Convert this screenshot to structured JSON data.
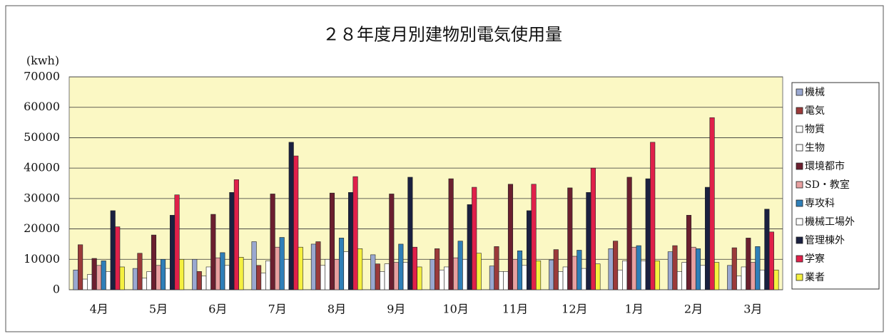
{
  "chart_data": {
    "type": "bar",
    "title": "２８年度月別建物別電気使用量",
    "y_label": "(kwh)",
    "categories": [
      "4月",
      "5月",
      "6月",
      "7月",
      "8月",
      "9月",
      "10月",
      "11月",
      "12月",
      "1月",
      "2月",
      "3月"
    ],
    "series": [
      {
        "name": "機械",
        "color": "#9aa8d0",
        "values": [
          6500,
          7000,
          10000,
          15800,
          15000,
          11500,
          10000,
          7800,
          9800,
          13500,
          12500,
          8000
        ]
      },
      {
        "name": "電気",
        "color": "#9b3a3a",
        "values": [
          14800,
          12000,
          6000,
          8000,
          15800,
          8500,
          13500,
          14200,
          13200,
          16000,
          14500,
          13800
        ]
      },
      {
        "name": "物質",
        "color": "#ffffff",
        "values": [
          3500,
          3800,
          4500,
          5500,
          8000,
          6000,
          6500,
          6000,
          6000,
          6500,
          6000,
          4500
        ]
      },
      {
        "name": "生物",
        "color": "#ffffff",
        "values": [
          5000,
          6000,
          7500,
          9500,
          10000,
          8500,
          7500,
          6000,
          7500,
          9500,
          9000,
          7500
        ]
      },
      {
        "name": "環境都市",
        "color": "#6b1f2f",
        "values": [
          10300,
          18000,
          24800,
          31500,
          31800,
          31500,
          36500,
          34700,
          33500,
          37000,
          24500,
          17000
        ]
      },
      {
        "name": "SD・教室",
        "color": "#e8a0a0",
        "values": [
          8000,
          8000,
          10500,
          14000,
          10000,
          9000,
          10500,
          10000,
          11000,
          14000,
          14000,
          9000
        ]
      },
      {
        "name": "専攻科",
        "color": "#2f7fb8",
        "values": [
          9500,
          10000,
          12200,
          17200,
          17000,
          15000,
          16000,
          12800,
          13000,
          14500,
          13500,
          14200
        ]
      },
      {
        "name": "機械工場外",
        "color": "#ffffff",
        "values": [
          6000,
          7000,
          8000,
          10000,
          12500,
          9000,
          10000,
          8000,
          7000,
          9500,
          8000,
          6500
        ]
      },
      {
        "name": "管理棟外",
        "color": "#1a2040",
        "values": [
          26000,
          24500,
          32000,
          48500,
          32000,
          37000,
          28000,
          26000,
          32000,
          36500,
          33700,
          26500
        ]
      },
      {
        "name": "学寮",
        "color": "#e0204a",
        "values": [
          20700,
          31200,
          36200,
          44000,
          37200,
          14000,
          33700,
          34700,
          40000,
          48500,
          56600,
          19000
        ]
      },
      {
        "name": "業者",
        "color": "#f5f040",
        "values": [
          7500,
          10000,
          10700,
          14000,
          13500,
          7500,
          12000,
          9500,
          8500,
          9500,
          9000,
          6500
        ]
      }
    ],
    "ylim": [
      0,
      70000
    ],
    "yticks": [
      0,
      10000,
      20000,
      30000,
      40000,
      50000,
      60000,
      70000
    ],
    "grid": true,
    "legend": "right"
  }
}
